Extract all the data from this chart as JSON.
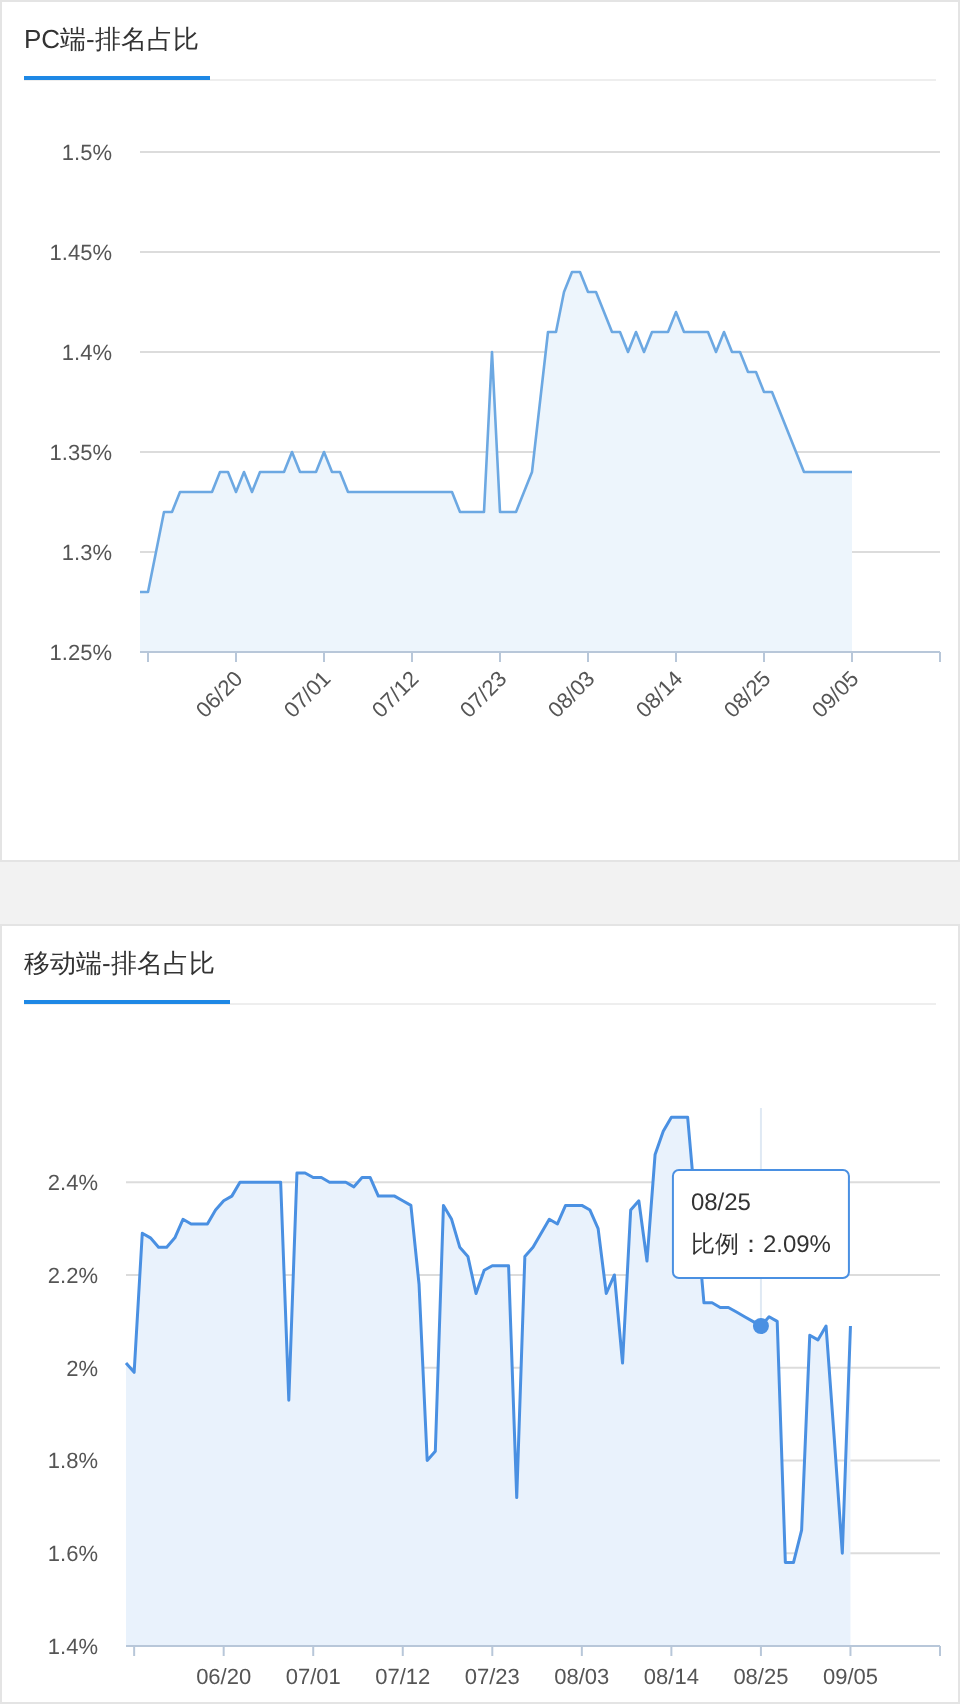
{
  "chart_data": [
    {
      "type": "area",
      "title": "PC端-排名占比",
      "grid": "y",
      "ylim": [
        1.25,
        1.5
      ],
      "yticks": [
        {
          "value": 1.25,
          "label": "1.25%"
        },
        {
          "value": 1.3,
          "label": "1.3%"
        },
        {
          "value": 1.35,
          "label": "1.35%"
        },
        {
          "value": 1.4,
          "label": "1.4%"
        },
        {
          "value": 1.45,
          "label": "1.45%"
        },
        {
          "value": 1.5,
          "label": "1.5%"
        }
      ],
      "xlim": [
        "--06-08",
        "--09-16"
      ],
      "xticks": [
        {
          "value": "--06-09",
          "label": null
        },
        {
          "value": "--06-20",
          "label": "06/20"
        },
        {
          "value": "--07-01",
          "label": "07/01"
        },
        {
          "value": "--07-12",
          "label": "07/12"
        },
        {
          "value": "--07-23",
          "label": "07/23"
        },
        {
          "value": "--08-03",
          "label": "08/03"
        },
        {
          "value": "--08-14",
          "label": "08/14"
        },
        {
          "value": "--08-25",
          "label": "08/25"
        },
        {
          "value": "--09-05",
          "label": "09/05"
        },
        {
          "value": "--09-16",
          "label": null
        }
      ],
      "series": [
        {
          "color": "#6ca8e2",
          "x": [
            "--06-08",
            "--06-09",
            "--06-11",
            "--06-12",
            "--06-13",
            "--06-17",
            "--06-18",
            "--06-19",
            "--06-20",
            "--06-21",
            "--06-22",
            "--06-23",
            "--06-26",
            "--06-27",
            "--06-28",
            "--06-30",
            "--07-01",
            "--07-02",
            "--07-03",
            "--07-04",
            "--07-17",
            "--07-18",
            "--07-21",
            "--07-22",
            "--07-23",
            "--07-25",
            "--07-27",
            "--07-29",
            "--07-30",
            "--07-31",
            "--08-01",
            "--08-02",
            "--08-03",
            "--08-04",
            "--08-05",
            "--08-06",
            "--08-07",
            "--08-08",
            "--08-09",
            "--08-10",
            "--08-11",
            "--08-13",
            "--08-14",
            "--08-15",
            "--08-18",
            "--08-19",
            "--08-20",
            "--08-21",
            "--08-22",
            "--08-23",
            "--08-24",
            "--08-25",
            "--08-26",
            "--08-30",
            "--09-05"
          ],
          "values": [
            1.28,
            1.28,
            1.32,
            1.32,
            1.33,
            1.33,
            1.34,
            1.34,
            1.33,
            1.34,
            1.33,
            1.34,
            1.34,
            1.35,
            1.34,
            1.34,
            1.35,
            1.34,
            1.34,
            1.33,
            1.33,
            1.32,
            1.32,
            1.4,
            1.32,
            1.32,
            1.34,
            1.41,
            1.41,
            1.43,
            1.44,
            1.44,
            1.43,
            1.43,
            1.42,
            1.41,
            1.41,
            1.4,
            1.41,
            1.4,
            1.41,
            1.41,
            1.42,
            1.41,
            1.41,
            1.4,
            1.41,
            1.4,
            1.4,
            1.39,
            1.39,
            1.38,
            1.38,
            1.34,
            1.34
          ]
        }
      ]
    },
    {
      "type": "area",
      "title": "移动端-排名占比",
      "grid": "y",
      "ylim": [
        1.4,
        2.56
      ],
      "yticks": [
        {
          "value": 1.4,
          "label": "1.4%"
        },
        {
          "value": 1.6,
          "label": "1.6%"
        },
        {
          "value": 1.8,
          "label": "1.8%"
        },
        {
          "value": 2,
          "label": "2%"
        },
        {
          "value": 2.2,
          "label": "2.2%"
        },
        {
          "value": 2.4,
          "label": "2.4%"
        }
      ],
      "xlim": [
        "--06-08",
        "--09-16"
      ],
      "xticks": [
        {
          "value": "--06-09",
          "label": null
        },
        {
          "value": "--06-20",
          "label": "06/20"
        },
        {
          "value": "--07-01",
          "label": "07/01"
        },
        {
          "value": "--07-12",
          "label": "07/12"
        },
        {
          "value": "--07-23",
          "label": "07/23"
        },
        {
          "value": "--08-03",
          "label": "08/03"
        },
        {
          "value": "--08-14",
          "label": "08/14"
        },
        {
          "value": "--08-25",
          "label": "08/25"
        },
        {
          "value": "--09-05",
          "label": "09/05"
        },
        {
          "value": "--09-16",
          "label": null
        }
      ],
      "annotations": [
        {
          "text": "08/25\n比例：2.09%",
          "x": "--08-25",
          "y": 2.09
        }
      ],
      "ref_lines": [
        {
          "axis": "x",
          "value": "--08-25",
          "color": "#dfe9f4"
        }
      ],
      "series": [
        {
          "color": "#4a90e2",
          "x": [
            "--06-08",
            "--06-09",
            "--06-10",
            "--06-11",
            "--06-12",
            "--06-13",
            "--06-14",
            "--06-15",
            "--06-16",
            "--06-18",
            "--06-19",
            "--06-20",
            "--06-21",
            "--06-22",
            "--06-27",
            "--06-28",
            "--06-29",
            "--06-30",
            "--07-01",
            "--07-02",
            "--07-03",
            "--07-05",
            "--07-06",
            "--07-07",
            "--07-08",
            "--07-09",
            "--07-11",
            "--07-12",
            "--07-13",
            "--07-14",
            "--07-15",
            "--07-16",
            "--07-17",
            "--07-18",
            "--07-19",
            "--07-20",
            "--07-21",
            "--07-22",
            "--07-23",
            "--07-25",
            "--07-26",
            "--07-27",
            "--07-28",
            "--07-29",
            "--07-30",
            "--07-31",
            "--08-01",
            "--08-03",
            "--08-04",
            "--08-05",
            "--08-06",
            "--08-07",
            "--08-08",
            "--08-09",
            "--08-10",
            "--08-11",
            "--08-12",
            "--08-13",
            "--08-14",
            "--08-16",
            "--08-18",
            "--08-19",
            "--08-20",
            "--08-21",
            "--08-22",
            "--08-23",
            "--08-24",
            "--08-25",
            "--08-26",
            "--08-27",
            "--08-28",
            "--08-29",
            "--08-30",
            "--08-31",
            "--09-01",
            "--09-02",
            "--09-03",
            "--09-04",
            "--09-05"
          ],
          "values": [
            2.01,
            1.99,
            2.29,
            2.28,
            2.26,
            2.26,
            2.28,
            2.32,
            2.31,
            2.31,
            2.34,
            2.36,
            2.37,
            2.4,
            2.4,
            1.93,
            2.42,
            2.42,
            2.41,
            2.41,
            2.4,
            2.4,
            2.39,
            2.41,
            2.41,
            2.37,
            2.37,
            2.36,
            2.35,
            2.18,
            1.8,
            1.82,
            2.35,
            2.32,
            2.26,
            2.24,
            2.16,
            2.21,
            2.22,
            2.22,
            1.72,
            2.24,
            2.26,
            2.29,
            2.32,
            2.31,
            2.35,
            2.35,
            2.34,
            2.3,
            2.16,
            2.2,
            2.01,
            2.34,
            2.36,
            2.23,
            2.46,
            2.51,
            2.54,
            2.54,
            2.14,
            2.14,
            2.13,
            2.13,
            2.12,
            2.11,
            2.1,
            2.09,
            2.11,
            2.1,
            1.58,
            1.58,
            1.65,
            2.07,
            2.06,
            2.09,
            1.85,
            1.6,
            2.09
          ]
        }
      ]
    }
  ]
}
